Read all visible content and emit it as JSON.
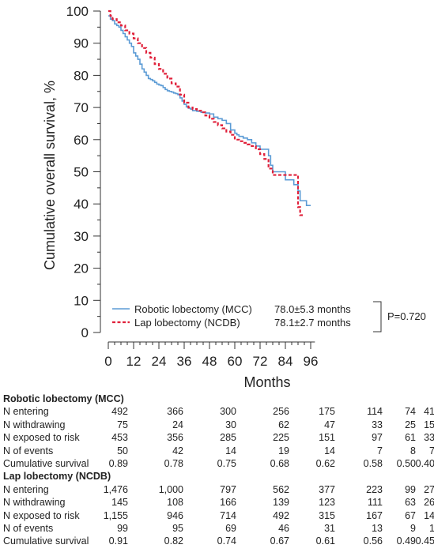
{
  "chart_data": {
    "type": "line",
    "title": "",
    "xlabel": "Months",
    "ylabel": "Cumulative overall survival, %",
    "xlim": [
      0,
      98
    ],
    "ylim": [
      0,
      100
    ],
    "xticks": [
      "0",
      "12",
      "24",
      "36",
      "48",
      "60",
      "72",
      "84",
      "96"
    ],
    "yticks": [
      "0",
      "10",
      "20",
      "30",
      "40",
      "50",
      "60",
      "70",
      "80",
      "90",
      "100"
    ],
    "grid": false,
    "legend_position": "bottom-center",
    "series": [
      {
        "name": "Robotic lobectomy (MCC)",
        "summary": "78.0±5.3 months",
        "color": "#5b9bd5",
        "style": "solid-step",
        "x": [
          0,
          1,
          2,
          3,
          4,
          5,
          6,
          7,
          8,
          9,
          10,
          11,
          12,
          13,
          14,
          15,
          16,
          17,
          18,
          19,
          20,
          21,
          22,
          23,
          24,
          25,
          26,
          27,
          28,
          29,
          30,
          31,
          32,
          33,
          34,
          35,
          36,
          37,
          38,
          39,
          40,
          42,
          44,
          46,
          48,
          50,
          52,
          54,
          56,
          58,
          60,
          61,
          62,
          64,
          66,
          68,
          70,
          72,
          74,
          76,
          77,
          78,
          80,
          82,
          84,
          86,
          88,
          90,
          91,
          92,
          94,
          96
        ],
        "y": [
          98.5,
          97.5,
          97,
          96,
          95.5,
          95,
          94,
          93,
          92,
          91,
          90,
          89,
          87,
          86,
          85,
          83.5,
          82,
          81,
          80,
          79,
          78.7,
          78.3,
          77.8,
          77.3,
          77,
          76.8,
          76.2,
          75.6,
          75.2,
          75,
          74.8,
          74.5,
          74.3,
          74,
          73,
          72,
          71,
          70.2,
          69.8,
          69.5,
          69,
          68.8,
          68.5,
          68.3,
          68,
          67,
          66.5,
          66,
          65,
          63,
          62,
          61.5,
          61,
          60.5,
          60,
          59,
          58,
          57,
          57,
          55,
          52,
          50,
          50,
          50,
          47.5,
          47.5,
          46,
          44,
          41,
          41,
          39.5,
          39.5
        ]
      },
      {
        "name": "Lap lobectomy (NCDB)",
        "summary": "78.1±2.7 months",
        "color": "#e0203a",
        "style": "dashed-step",
        "x": [
          0,
          1,
          2,
          4,
          6,
          8,
          10,
          12,
          14,
          16,
          18,
          20,
          22,
          24,
          26,
          28,
          30,
          32,
          34,
          36,
          38,
          40,
          42,
          44,
          46,
          48,
          50,
          52,
          54,
          56,
          58,
          60,
          62,
          64,
          66,
          68,
          70,
          72,
          74,
          76,
          78,
          80,
          82,
          84,
          86,
          88,
          89,
          90,
          91,
          93
        ],
        "y": [
          100,
          98.5,
          97.5,
          96.5,
          95.5,
          94,
          93,
          91.5,
          90,
          88.5,
          87,
          85.5,
          83.5,
          82,
          80.5,
          79,
          77.5,
          76.5,
          74,
          71.5,
          70,
          69.5,
          69,
          68.5,
          67.5,
          66.5,
          65.5,
          64.5,
          63.5,
          62.5,
          61.5,
          60,
          59.5,
          59,
          58.5,
          58,
          57,
          55.5,
          54,
          51,
          49,
          49,
          49,
          49,
          49,
          49,
          49,
          39,
          36.5,
          36.5
        ]
      }
    ],
    "annotation": "P=0.720"
  },
  "table": {
    "sections": [
      {
        "title": "Robotic lobectomy (MCC)",
        "rows": [
          {
            "label": "N entering",
            "values": [
              "492",
              "366",
              "300",
              "256",
              "175",
              "114",
              "74",
              "41"
            ]
          },
          {
            "label": "N withdrawing",
            "values": [
              "75",
              "24",
              "30",
              "62",
              "47",
              "33",
              "25",
              "15"
            ]
          },
          {
            "label": "N exposed to risk",
            "values": [
              "453",
              "356",
              "285",
              "225",
              "151",
              "97",
              "61",
              "33"
            ]
          },
          {
            "label": "N of events",
            "values": [
              "50",
              "42",
              "14",
              "19",
              "14",
              "7",
              "8",
              "7"
            ]
          },
          {
            "label": "Cumulative survival",
            "values": [
              "0.89",
              "0.78",
              "0.75",
              "0.68",
              "0.62",
              "0.58",
              "0.50",
              "0.40"
            ]
          }
        ]
      },
      {
        "title": "Lap lobectomy (NCDB)",
        "rows": [
          {
            "label": "N entering",
            "values": [
              "1,476",
              "1,000",
              "797",
              "562",
              "377",
              "223",
              "99",
              "27"
            ]
          },
          {
            "label": "N withdrawing",
            "values": [
              "145",
              "108",
              "166",
              "139",
              "123",
              "111",
              "63",
              "26"
            ]
          },
          {
            "label": "N exposed to risk",
            "values": [
              "1,155",
              "946",
              "714",
              "492",
              "315",
              "167",
              "67",
              "14"
            ]
          },
          {
            "label": "N of events",
            "values": [
              "99",
              "95",
              "69",
              "46",
              "31",
              "13",
              "9",
              "1"
            ]
          },
          {
            "label": "Cumulative survival",
            "values": [
              "0.91",
              "0.82",
              "0.74",
              "0.67",
              "0.61",
              "0.56",
              "0.49",
              "0.45"
            ]
          }
        ]
      }
    ]
  }
}
